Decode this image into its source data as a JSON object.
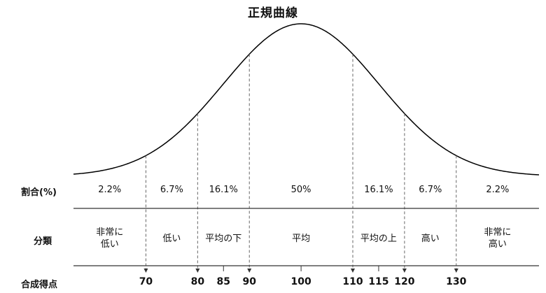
{
  "title": "正規曲線",
  "rows": {
    "ratio_label": "割合(%)",
    "category_label": "分類",
    "score_label": "合成得点"
  },
  "ratios": [
    "2.2%",
    "6.7%",
    "16.1%",
    "50%",
    "16.1%",
    "6.7%",
    "2.2%"
  ],
  "categories": [
    {
      "line1": "非常に",
      "line2": "低い"
    },
    {
      "line1": "低い",
      "line2": ""
    },
    {
      "line1": "平均の下",
      "line2": ""
    },
    {
      "line1": "平均",
      "line2": ""
    },
    {
      "line1": "平均の上",
      "line2": ""
    },
    {
      "line1": "高い",
      "line2": ""
    },
    {
      "line1": "非常に",
      "line2": "高い"
    }
  ],
  "chart_data": {
    "type": "line",
    "title": "正規曲線",
    "mean": 100,
    "sd": 15,
    "x_range": [
      56,
      146
    ],
    "boundaries": [
      70,
      80,
      90,
      110,
      120,
      130
    ],
    "ticks": [
      70,
      80,
      85,
      90,
      100,
      110,
      115,
      120,
      130
    ],
    "tick_labels": [
      "70",
      "80",
      "85",
      "90",
      "100",
      "110",
      "115",
      "120",
      "130"
    ],
    "arrow_ticks": [
      70,
      80,
      90,
      110,
      120,
      130
    ]
  },
  "colors": {
    "line": "#000000",
    "dashed": "#666666",
    "rule": "#333333"
  }
}
